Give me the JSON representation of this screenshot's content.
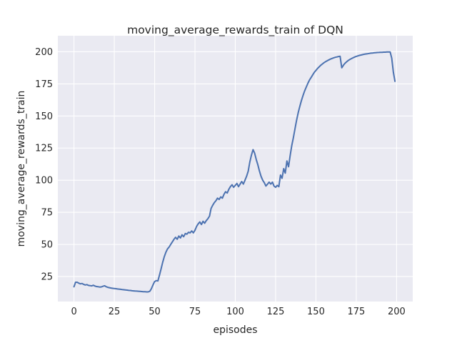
{
  "figure": {
    "title": "moving_average_rewards_train of DQN"
  },
  "colors": {
    "line": "#4c72b0",
    "plot_background": "#eaeaf2",
    "grid": "#ffffff",
    "text": "#262626",
    "figure_background": "#ffffff"
  },
  "chart_data": {
    "type": "line",
    "title": "moving_average_rewards_train of DQN",
    "xlabel": "episodes",
    "ylabel": "moving_average_rewards_train",
    "xlim": [
      -10,
      210
    ],
    "ylim": [
      5.5,
      212.5
    ],
    "x_ticks": [
      0,
      25,
      50,
      75,
      100,
      125,
      150,
      175,
      200
    ],
    "y_ticks": [
      25,
      50,
      75,
      100,
      125,
      150,
      175,
      200
    ],
    "grid": true,
    "legend_position": "none",
    "style": "seaborn-darkgrid",
    "series": [
      {
        "name": "DQN",
        "color": "#4c72b0",
        "x": [
          0,
          1,
          2,
          3,
          4,
          5,
          6,
          7,
          8,
          9,
          10,
          11,
          12,
          13,
          14,
          15,
          16,
          17,
          18,
          19,
          20,
          21,
          22,
          23,
          24,
          25,
          26,
          27,
          28,
          29,
          30,
          31,
          32,
          33,
          34,
          35,
          36,
          37,
          38,
          39,
          40,
          41,
          42,
          43,
          44,
          45,
          46,
          47,
          48,
          49,
          50,
          51,
          52,
          53,
          54,
          55,
          56,
          57,
          58,
          59,
          60,
          61,
          62,
          63,
          64,
          65,
          66,
          67,
          68,
          69,
          70,
          71,
          72,
          73,
          74,
          75,
          76,
          77,
          78,
          79,
          80,
          81,
          82,
          83,
          84,
          85,
          86,
          87,
          88,
          89,
          90,
          91,
          92,
          93,
          94,
          95,
          96,
          97,
          98,
          99,
          100,
          101,
          102,
          103,
          104,
          105,
          106,
          107,
          108,
          109,
          110,
          111,
          112,
          113,
          114,
          115,
          116,
          117,
          118,
          119,
          120,
          121,
          122,
          123,
          124,
          125,
          126,
          127,
          128,
          129,
          130,
          131,
          132,
          133,
          134,
          135,
          136,
          137,
          138,
          139,
          140,
          141,
          142,
          143,
          144,
          145,
          146,
          147,
          148,
          149,
          150,
          151,
          152,
          153,
          154,
          155,
          156,
          157,
          158,
          159,
          160,
          161,
          162,
          163,
          164,
          165,
          166,
          167,
          168,
          169,
          170,
          171,
          172,
          173,
          174,
          175,
          176,
          177,
          178,
          179,
          180,
          181,
          182,
          183,
          184,
          185,
          186,
          187,
          188,
          189,
          190,
          191,
          192,
          193,
          194,
          195,
          196,
          197,
          198,
          199
        ],
        "values": [
          17,
          20.5,
          20.5,
          19.8,
          19.3,
          19.6,
          18.9,
          18.4,
          18.7,
          18.1,
          17.9,
          17.7,
          18.2,
          17.6,
          17.2,
          17,
          16.8,
          16.9,
          17.4,
          17.8,
          17,
          16.6,
          16.3,
          16,
          15.8,
          15.6,
          15.5,
          15.3,
          15.2,
          15,
          14.8,
          14.7,
          14.5,
          14.4,
          14.2,
          14.1,
          13.9,
          13.8,
          13.7,
          13.6,
          13.5,
          13.4,
          13.3,
          13.2,
          13.1,
          13,
          13,
          13.5,
          15.5,
          18.5,
          21,
          21.8,
          21.5,
          26,
          31,
          36,
          40.5,
          44,
          46.5,
          48,
          50,
          52,
          54,
          55.5,
          54,
          56.5,
          55,
          57.5,
          56,
          58.5,
          58,
          59.5,
          59,
          60.5,
          59,
          61,
          64,
          66,
          67.5,
          65.5,
          68,
          66.5,
          68.5,
          70,
          72,
          78,
          80.5,
          82.5,
          84,
          86,
          85,
          87,
          86,
          89,
          91,
          90,
          93,
          95,
          96.5,
          94.5,
          96,
          97.5,
          95,
          97,
          99,
          97,
          100,
          103,
          107,
          114,
          119.5,
          123.8,
          121,
          116,
          112,
          107,
          103,
          100,
          98,
          95.5,
          97,
          98.5,
          97,
          98.5,
          95.5,
          94.5,
          96,
          95,
          104,
          101.5,
          109,
          105.5,
          115,
          110.5,
          119,
          127,
          133,
          140,
          146.5,
          152.5,
          157.5,
          162,
          166,
          169.5,
          172.5,
          175.5,
          178,
          180,
          182,
          184,
          185.5,
          187,
          188.3,
          189.5,
          190.5,
          191.5,
          192.3,
          193,
          193.7,
          194.3,
          194.8,
          195.3,
          195.7,
          196,
          196.3,
          196.5,
          187.5,
          189.5,
          191,
          192.2,
          193.2,
          194,
          194.7,
          195.3,
          195.9,
          196.4,
          196.8,
          197.2,
          197.5,
          197.8,
          198.1,
          198.3,
          198.5,
          198.7,
          198.9,
          199,
          199.2,
          199.3,
          199.4,
          199.5,
          199.6,
          199.6,
          199.7,
          199.7,
          199.8,
          199.8,
          199.8,
          195,
          184,
          177
        ]
      }
    ]
  }
}
